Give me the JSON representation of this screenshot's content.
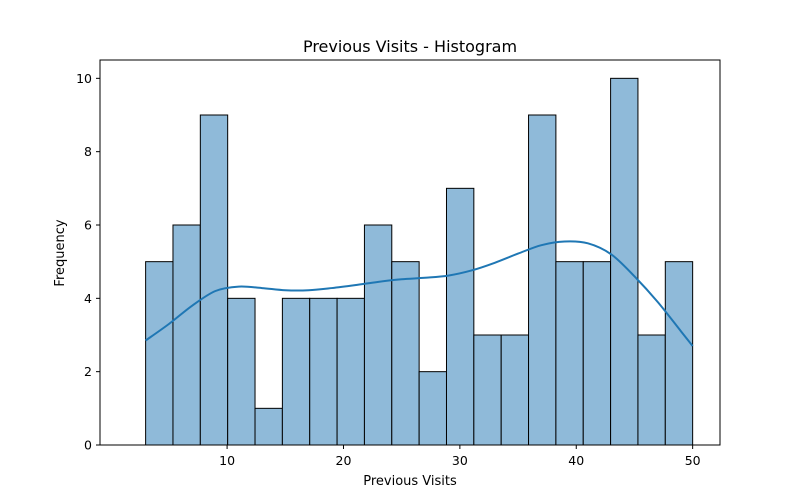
{
  "chart_data": {
    "type": "bar",
    "title": "Previous Visits - Histogram",
    "xlabel": "Previous Visits",
    "ylabel": "Frequency",
    "xlim": [
      -0.92,
      52.35
    ],
    "ylim": [
      0,
      10.5
    ],
    "xticks": [
      10,
      20,
      30,
      40,
      50
    ],
    "yticks": [
      0,
      2,
      4,
      6,
      8,
      10
    ],
    "grid": false,
    "bins": [
      {
        "x0": 3.0,
        "x1": 5.35,
        "value": 5
      },
      {
        "x0": 5.35,
        "x1": 7.7,
        "value": 6
      },
      {
        "x0": 7.7,
        "x1": 10.05,
        "value": 9
      },
      {
        "x0": 10.05,
        "x1": 12.4,
        "value": 4
      },
      {
        "x0": 12.4,
        "x1": 14.75,
        "value": 1
      },
      {
        "x0": 14.75,
        "x1": 17.1,
        "value": 4
      },
      {
        "x0": 17.1,
        "x1": 19.45,
        "value": 4
      },
      {
        "x0": 19.45,
        "x1": 21.8,
        "value": 4
      },
      {
        "x0": 21.8,
        "x1": 24.15,
        "value": 6
      },
      {
        "x0": 24.15,
        "x1": 26.5,
        "value": 5
      },
      {
        "x0": 26.5,
        "x1": 28.85,
        "value": 2
      },
      {
        "x0": 28.85,
        "x1": 31.2,
        "value": 7
      },
      {
        "x0": 31.2,
        "x1": 33.55,
        "value": 3
      },
      {
        "x0": 33.55,
        "x1": 35.9,
        "value": 3
      },
      {
        "x0": 35.9,
        "x1": 38.25,
        "value": 9
      },
      {
        "x0": 38.25,
        "x1": 40.6,
        "value": 5
      },
      {
        "x0": 40.6,
        "x1": 42.95,
        "value": 5
      },
      {
        "x0": 42.95,
        "x1": 45.3,
        "value": 10
      },
      {
        "x0": 45.3,
        "x1": 47.65,
        "value": 3
      },
      {
        "x0": 47.65,
        "x1": 50.0,
        "value": 5
      }
    ],
    "kde": {
      "x": [
        3,
        5,
        7,
        9,
        11,
        13,
        15,
        17,
        19,
        21,
        23,
        25,
        27,
        29,
        31,
        33,
        35,
        37,
        39,
        41,
        43,
        45,
        47,
        49,
        50
      ],
      "y": [
        2.85,
        3.3,
        3.8,
        4.2,
        4.32,
        4.28,
        4.22,
        4.22,
        4.28,
        4.36,
        4.45,
        4.52,
        4.56,
        4.62,
        4.76,
        4.97,
        5.22,
        5.45,
        5.55,
        5.5,
        5.2,
        4.6,
        3.9,
        3.1,
        2.7
      ]
    },
    "colors": {
      "bar_fill": "#8fbad9",
      "bar_edge": "#000000",
      "kde_line": "#1f77b4"
    }
  }
}
